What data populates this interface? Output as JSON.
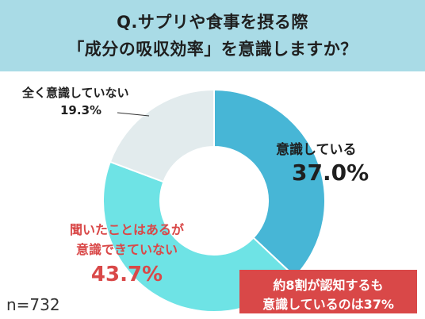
{
  "header": {
    "line1": "Q.サプリや食事を摂る際",
    "line2": "「成分の吸収効率」を意識しますか？"
  },
  "chart_data": {
    "type": "pie",
    "categories": [
      "意識している",
      "聞いたことはあるが意識できていない",
      "全く意識していない"
    ],
    "values": [
      37.0,
      43.7,
      19.3
    ],
    "value_labels": [
      "37.0%",
      "43.7%",
      "19.3%"
    ],
    "colors": [
      "#47b6d6",
      "#6ee3e5",
      "#e2ebed"
    ],
    "start": "12 o'clock, clockwise"
  },
  "labels": {
    "aware_cat": "意識している",
    "aware_val": "37.0%",
    "cant_cat_line1": "聞いたことはあるが",
    "cant_cat_line2": "意識できていない",
    "cant_val": "43.7%",
    "unaware_cat": "全く意識していない",
    "unaware_val": "19.3%"
  },
  "callout": {
    "line1": "約8割が認知するも",
    "line2": "意識しているのは37%"
  },
  "sample": "n=732",
  "colors": {
    "header_bg": "#a9dbe6",
    "accent_red": "#d94848"
  }
}
